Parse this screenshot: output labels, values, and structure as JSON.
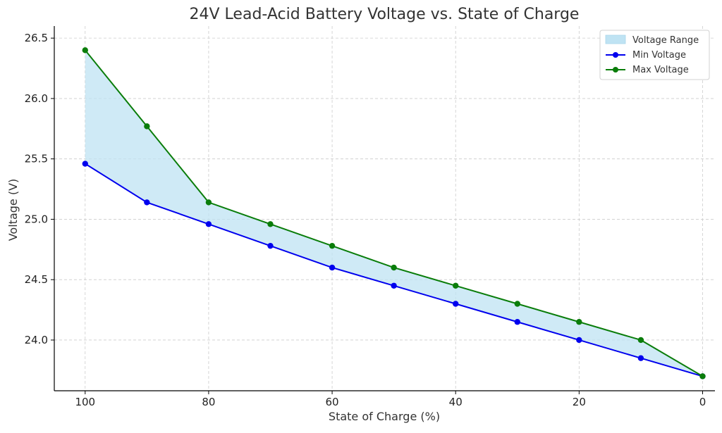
{
  "chart_data": {
    "type": "line",
    "title": "24V Lead-Acid Battery Voltage vs. State of Charge",
    "xlabel": "State of Charge (%)",
    "ylabel": "Voltage (V)",
    "x": [
      100,
      90,
      80,
      70,
      60,
      50,
      40,
      30,
      20,
      10,
      0
    ],
    "xlim": [
      105,
      -2
    ],
    "ylim": [
      23.58,
      26.6
    ],
    "x_ticks": [
      100,
      80,
      60,
      40,
      20,
      0
    ],
    "x_tick_labels": [
      "100",
      "80",
      "60",
      "40",
      "20",
      "0"
    ],
    "y_ticks": [
      24.0,
      24.5,
      25.0,
      25.5,
      26.0,
      26.5
    ],
    "y_tick_labels": [
      "24.0",
      "24.5",
      "25.0",
      "25.5",
      "26.0",
      "26.5"
    ],
    "grid": true,
    "legend_position": "top-right",
    "fill_between": {
      "name": "Voltage Range",
      "color": "#bfe3f3",
      "lower": "Min Voltage",
      "upper": "Max Voltage"
    },
    "series": [
      {
        "name": "Min Voltage",
        "color": "#0000ee",
        "values": [
          25.46,
          25.14,
          24.96,
          24.78,
          24.6,
          24.45,
          24.3,
          24.15,
          24.0,
          23.85,
          23.7
        ]
      },
      {
        "name": "Max Voltage",
        "color": "#0a7d0a",
        "values": [
          26.4,
          25.77,
          25.14,
          24.96,
          24.78,
          24.6,
          24.45,
          24.3,
          24.15,
          24.0,
          23.7
        ]
      }
    ],
    "legend": [
      "Voltage Range",
      "Min Voltage",
      "Max Voltage"
    ]
  }
}
